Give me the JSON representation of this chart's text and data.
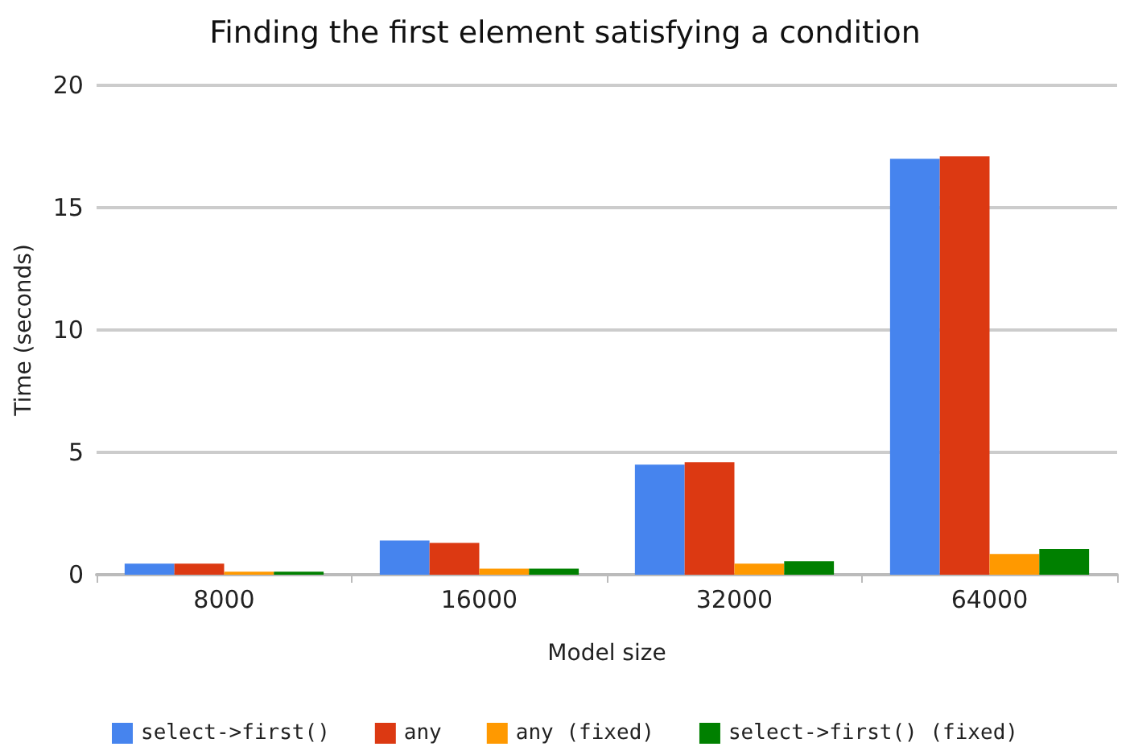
{
  "chart_data": {
    "type": "bar",
    "title": "Finding the first element satisfying a condition",
    "xlabel": "Model size",
    "ylabel": "Time (seconds)",
    "categories": [
      "8000",
      "16000",
      "32000",
      "64000"
    ],
    "series": [
      {
        "name": "select->first()",
        "color": "#4684ee",
        "values": [
          0.45,
          1.4,
          4.5,
          17.0
        ]
      },
      {
        "name": "any",
        "color": "#dc3912",
        "values": [
          0.45,
          1.3,
          4.6,
          17.1
        ]
      },
      {
        "name": "any (fixed)",
        "color": "#ff9900",
        "values": [
          0.12,
          0.25,
          0.45,
          0.85
        ]
      },
      {
        "name": "select->first() (fixed)",
        "color": "#008000",
        "values": [
          0.12,
          0.25,
          0.55,
          1.05
        ]
      }
    ],
    "ylim": [
      0,
      20
    ],
    "yticks": [
      0,
      5,
      10,
      15,
      20
    ],
    "grid": "y",
    "legend": "bottom"
  }
}
